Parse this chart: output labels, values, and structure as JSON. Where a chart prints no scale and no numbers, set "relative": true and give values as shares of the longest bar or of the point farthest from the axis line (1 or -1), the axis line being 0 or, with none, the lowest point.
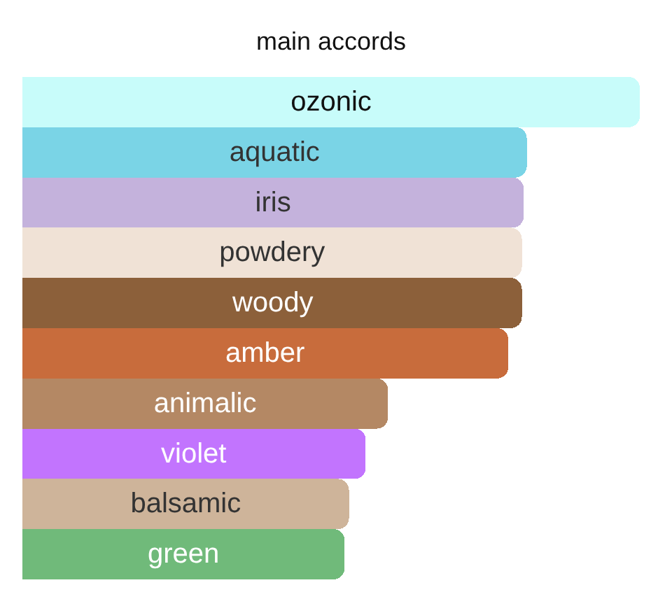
{
  "chart_data": {
    "type": "bar",
    "orientation": "horizontal",
    "relative": true,
    "title": "main accords",
    "categories": [
      "ozonic",
      "aquatic",
      "iris",
      "powdery",
      "woody",
      "amber",
      "animalic",
      "violet",
      "balsamic",
      "green"
    ],
    "values": [
      1,
      0.817,
      0.812,
      0.809,
      0.809,
      0.787,
      0.592,
      0.556,
      0.529,
      0.522
    ],
    "colors": [
      "#c8fcfa",
      "#7ad4e6",
      "#c4b2dc",
      "#f0e2d6",
      "#8c603a",
      "#c86c3c",
      "#b48864",
      "#c274fe",
      "#ceb49a",
      "#70ba7a"
    ],
    "tick_labels": false
  }
}
